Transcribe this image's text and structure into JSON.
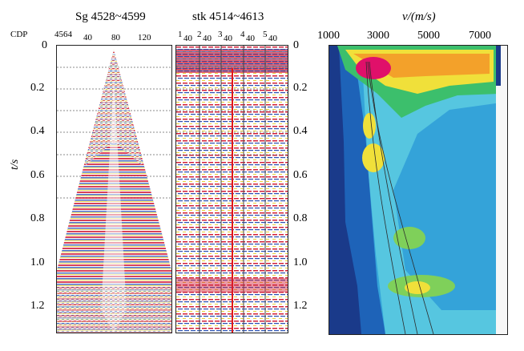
{
  "left_panel": {
    "title": "Sg 4528~4599",
    "cdp_label": "CDP",
    "cdp_start": "4564",
    "x_ticks": [
      "40",
      "80",
      "120"
    ]
  },
  "middle_panel": {
    "title": "stk 4514~4613",
    "group_numbers": [
      "1",
      "2",
      "3",
      "4",
      "5"
    ],
    "group_sub": [
      "40",
      "40",
      "40",
      "40",
      "40"
    ]
  },
  "right_panel": {
    "x_axis_title": "v/(m/s)",
    "x_ticks": [
      "1000",
      "3000",
      "5000",
      "7000"
    ]
  },
  "y_axis": {
    "title": "t/s",
    "ticks": [
      "0",
      "0.2",
      "0.4",
      "0.6",
      "0.8",
      "1.0",
      "1.2"
    ]
  },
  "colors": {
    "seismic_red": "#d0203a",
    "seismic_blue": "#2a4fb0",
    "seismic_yellow": "#e9d23a",
    "velocity_low": "#1a3a8a",
    "velocity_high": "#e0106a"
  }
}
